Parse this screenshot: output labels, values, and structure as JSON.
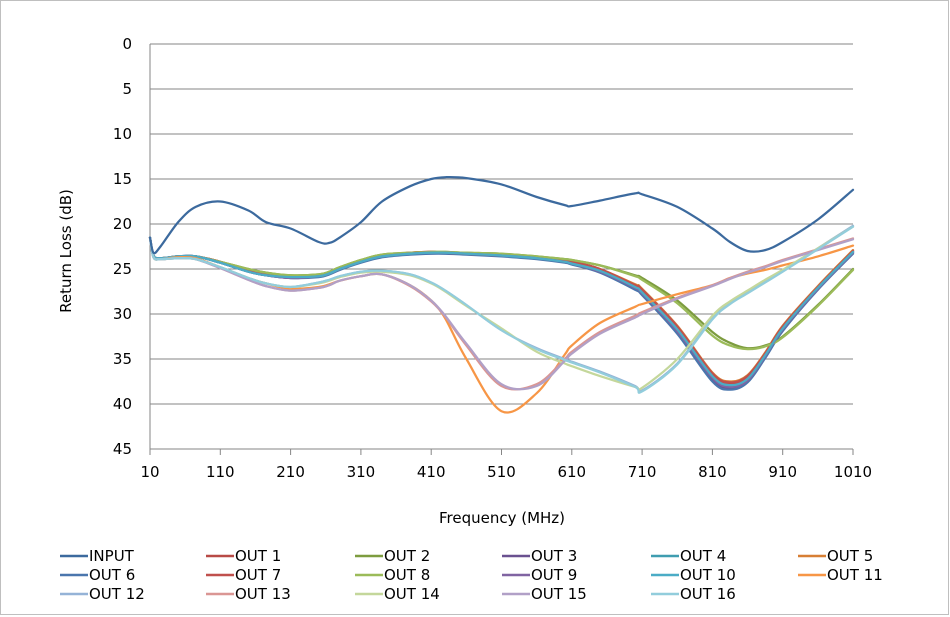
{
  "chart_data": {
    "type": "line",
    "xlabel": "Frequency (MHz)",
    "ylabel": "Return Loss (dB)",
    "xlim": [
      10,
      1010
    ],
    "ylim": [
      0,
      45
    ],
    "y_reversed": true,
    "x_ticks": [
      10,
      110,
      210,
      310,
      410,
      510,
      610,
      710,
      810,
      910,
      1010
    ],
    "y_ticks": [
      0,
      5,
      10,
      15,
      20,
      25,
      30,
      35,
      40,
      45
    ],
    "grid": "horizontal",
    "legend_position": "bottom",
    "x": [
      10,
      15,
      25,
      50,
      75,
      110,
      150,
      175,
      210,
      250,
      265,
      280,
      310,
      340,
      380,
      410,
      430,
      460,
      510,
      560,
      600,
      610,
      650,
      700,
      710,
      760,
      810,
      835,
      860,
      885,
      910,
      960,
      1010
    ],
    "series": [
      {
        "name": "INPUT",
        "color": "#3c6a9e",
        "values": [
          21.5,
          23.2,
          22.5,
          19.8,
          18.1,
          17.5,
          18.5,
          19.8,
          20.5,
          22.0,
          22.1,
          21.5,
          19.8,
          17.5,
          15.8,
          15.0,
          14.8,
          14.9,
          15.6,
          17.0,
          17.9,
          18.0,
          17.4,
          16.6,
          16.7,
          18.1,
          20.5,
          22.0,
          23.0,
          22.9,
          22.0,
          19.5,
          16.2
        ]
      },
      {
        "name": "OUT 1",
        "color": "#b84a46",
        "values": [
          21.5,
          23.5,
          23.8,
          23.6,
          23.6,
          24.2,
          25.2,
          25.6,
          25.9,
          25.8,
          25.5,
          25.0,
          24.1,
          23.5,
          23.2,
          23.1,
          23.2,
          23.3,
          23.5,
          23.7,
          24.1,
          24.2,
          25.0,
          26.8,
          27.3,
          31.5,
          36.8,
          37.8,
          37.0,
          34.5,
          31.5,
          27.0,
          23.0
        ]
      },
      {
        "name": "OUT 2",
        "color": "#7d9c3f",
        "values": [
          21.5,
          23.5,
          23.8,
          23.6,
          23.6,
          24.2,
          25.0,
          25.4,
          25.7,
          25.6,
          25.3,
          24.8,
          24.0,
          23.4,
          23.2,
          23.1,
          23.1,
          23.2,
          23.3,
          23.6,
          23.9,
          24.0,
          24.6,
          25.7,
          26.0,
          28.5,
          32.0,
          33.2,
          33.8,
          33.5,
          32.5,
          29.0,
          25.0
        ]
      },
      {
        "name": "OUT 3",
        "color": "#6a5190",
        "values": [
          21.5,
          23.5,
          23.8,
          23.6,
          23.6,
          24.3,
          25.3,
          25.7,
          26.0,
          25.8,
          25.5,
          25.0,
          24.2,
          23.6,
          23.3,
          23.2,
          23.2,
          23.3,
          23.5,
          23.8,
          24.2,
          24.4,
          25.3,
          27.2,
          27.8,
          32.0,
          37.3,
          38.2,
          37.5,
          34.8,
          31.8,
          27.2,
          23.2
        ]
      },
      {
        "name": "OUT 4",
        "color": "#3f9db0",
        "values": [
          21.5,
          23.5,
          23.8,
          23.6,
          23.6,
          24.3,
          25.3,
          25.7,
          25.9,
          25.8,
          25.5,
          25.0,
          24.2,
          23.6,
          23.3,
          23.2,
          23.2,
          23.3,
          23.5,
          23.8,
          24.2,
          24.4,
          25.2,
          27.0,
          27.6,
          31.8,
          37.0,
          38.0,
          37.3,
          34.6,
          31.6,
          27.1,
          23.1
        ]
      },
      {
        "name": "OUT 5",
        "color": "#d77f34",
        "values": [
          21.5,
          23.5,
          23.8,
          23.6,
          23.6,
          24.2,
          25.2,
          25.6,
          25.9,
          25.8,
          25.5,
          25.0,
          24.1,
          23.5,
          23.2,
          23.1,
          23.2,
          23.3,
          23.5,
          23.7,
          24.1,
          24.2,
          25.0,
          26.7,
          27.2,
          31.3,
          36.5,
          37.5,
          36.8,
          34.3,
          31.3,
          26.9,
          22.9
        ]
      },
      {
        "name": "OUT 6",
        "color": "#4a76ad",
        "values": [
          21.5,
          23.5,
          23.8,
          23.6,
          23.6,
          24.3,
          25.3,
          25.7,
          26.0,
          25.9,
          25.6,
          25.1,
          24.3,
          23.7,
          23.4,
          23.3,
          23.3,
          23.4,
          23.6,
          23.9,
          24.3,
          24.5,
          25.4,
          27.3,
          27.9,
          32.2,
          37.5,
          38.4,
          37.6,
          34.9,
          31.9,
          27.3,
          23.3
        ]
      },
      {
        "name": "OUT 7",
        "color": "#c0504d",
        "values": [
          21.5,
          23.5,
          23.8,
          23.6,
          23.6,
          24.2,
          25.2,
          25.6,
          25.9,
          25.8,
          25.5,
          25.0,
          24.1,
          23.5,
          23.2,
          23.1,
          23.2,
          23.3,
          23.5,
          23.7,
          24.1,
          24.2,
          25.0,
          26.8,
          27.3,
          31.4,
          36.6,
          37.6,
          36.9,
          34.4,
          31.4,
          27.0,
          23.0
        ]
      },
      {
        "name": "OUT 8",
        "color": "#9bbb59",
        "values": [
          21.5,
          23.5,
          23.8,
          23.6,
          23.6,
          24.2,
          25.0,
          25.4,
          25.7,
          25.6,
          25.3,
          24.8,
          24.0,
          23.4,
          23.2,
          23.1,
          23.1,
          23.2,
          23.3,
          23.6,
          23.9,
          24.0,
          24.6,
          25.8,
          26.2,
          28.8,
          32.4,
          33.5,
          33.9,
          33.6,
          32.6,
          29.1,
          25.1
        ]
      },
      {
        "name": "OUT 9",
        "color": "#8064a2",
        "values": [
          21.5,
          23.5,
          23.8,
          23.6,
          23.6,
          24.3,
          25.3,
          25.7,
          26.0,
          25.8,
          25.5,
          25.0,
          24.2,
          23.6,
          23.3,
          23.2,
          23.2,
          23.3,
          23.5,
          23.8,
          24.2,
          24.4,
          25.3,
          27.1,
          27.7,
          31.9,
          37.1,
          38.1,
          37.4,
          34.7,
          31.7,
          27.2,
          23.2
        ]
      },
      {
        "name": "OUT 10",
        "color": "#4bacc6",
        "values": [
          21.5,
          23.5,
          23.8,
          23.6,
          23.6,
          24.3,
          25.3,
          25.7,
          25.9,
          25.8,
          25.5,
          25.0,
          24.2,
          23.6,
          23.3,
          23.2,
          23.2,
          23.3,
          23.5,
          23.8,
          24.2,
          24.4,
          25.2,
          27.0,
          27.6,
          31.7,
          36.9,
          37.9,
          37.2,
          34.6,
          31.6,
          27.1,
          23.1
        ]
      },
      {
        "name": "OUT 11",
        "color": "#f79646",
        "values": [
          21.5,
          23.7,
          23.9,
          23.7,
          23.8,
          24.8,
          26.0,
          26.6,
          27.2,
          27.0,
          26.7,
          26.3,
          25.8,
          25.6,
          26.8,
          28.5,
          30.5,
          35.0,
          40.8,
          38.8,
          34.5,
          33.5,
          31.0,
          29.2,
          28.9,
          27.8,
          26.8,
          26.0,
          25.5,
          25.1,
          24.6,
          23.6,
          22.4
        ]
      },
      {
        "name": "OUT 12",
        "color": "#95b3d7",
        "values": [
          21.5,
          23.7,
          23.9,
          23.8,
          23.9,
          24.8,
          26.0,
          26.6,
          27.0,
          26.5,
          26.2,
          25.8,
          25.3,
          25.2,
          25.6,
          26.5,
          27.4,
          29.0,
          31.8,
          33.8,
          35.0,
          35.3,
          36.4,
          38.0,
          38.5,
          35.5,
          30.5,
          28.8,
          27.6,
          26.4,
          25.2,
          22.7,
          20.2
        ]
      },
      {
        "name": "OUT 13",
        "color": "#da9694",
        "values": [
          21.5,
          23.7,
          23.9,
          23.8,
          23.9,
          24.9,
          26.2,
          26.9,
          27.4,
          27.1,
          26.8,
          26.3,
          25.8,
          25.6,
          26.9,
          28.6,
          30.3,
          33.5,
          38.0,
          37.8,
          35.0,
          34.2,
          32.0,
          30.2,
          29.8,
          28.2,
          26.8,
          26.0,
          25.3,
          24.7,
          24.0,
          22.8,
          21.6
        ]
      },
      {
        "name": "OUT 14",
        "color": "#c4d79b",
        "values": [
          21.5,
          23.7,
          23.9,
          23.8,
          23.9,
          24.8,
          26.0,
          26.6,
          27.0,
          26.6,
          26.3,
          25.9,
          25.4,
          25.3,
          25.7,
          26.6,
          27.5,
          29.1,
          31.6,
          34.2,
          35.5,
          35.8,
          36.9,
          38.1,
          38.2,
          35.0,
          30.2,
          28.6,
          27.4,
          26.2,
          25.1,
          22.7,
          20.3
        ]
      },
      {
        "name": "OUT 15",
        "color": "#b1a0c7",
        "values": [
          21.5,
          23.7,
          23.9,
          23.8,
          23.9,
          24.9,
          26.2,
          26.9,
          27.4,
          27.1,
          26.8,
          26.3,
          25.8,
          25.6,
          26.8,
          28.5,
          30.2,
          33.3,
          37.8,
          38.0,
          35.2,
          34.4,
          32.2,
          30.4,
          30.0,
          28.3,
          26.9,
          26.1,
          25.4,
          24.8,
          24.1,
          22.9,
          21.7
        ]
      },
      {
        "name": "OUT 16",
        "color": "#92cddc",
        "values": [
          21.5,
          23.7,
          23.9,
          23.8,
          23.9,
          24.8,
          26.0,
          26.6,
          27.0,
          26.5,
          26.2,
          25.8,
          25.3,
          25.2,
          25.6,
          26.5,
          27.4,
          29.0,
          31.8,
          33.9,
          35.1,
          35.4,
          36.5,
          38.1,
          38.6,
          35.6,
          30.6,
          28.9,
          27.7,
          26.5,
          25.3,
          22.8,
          20.3
        ]
      }
    ]
  }
}
